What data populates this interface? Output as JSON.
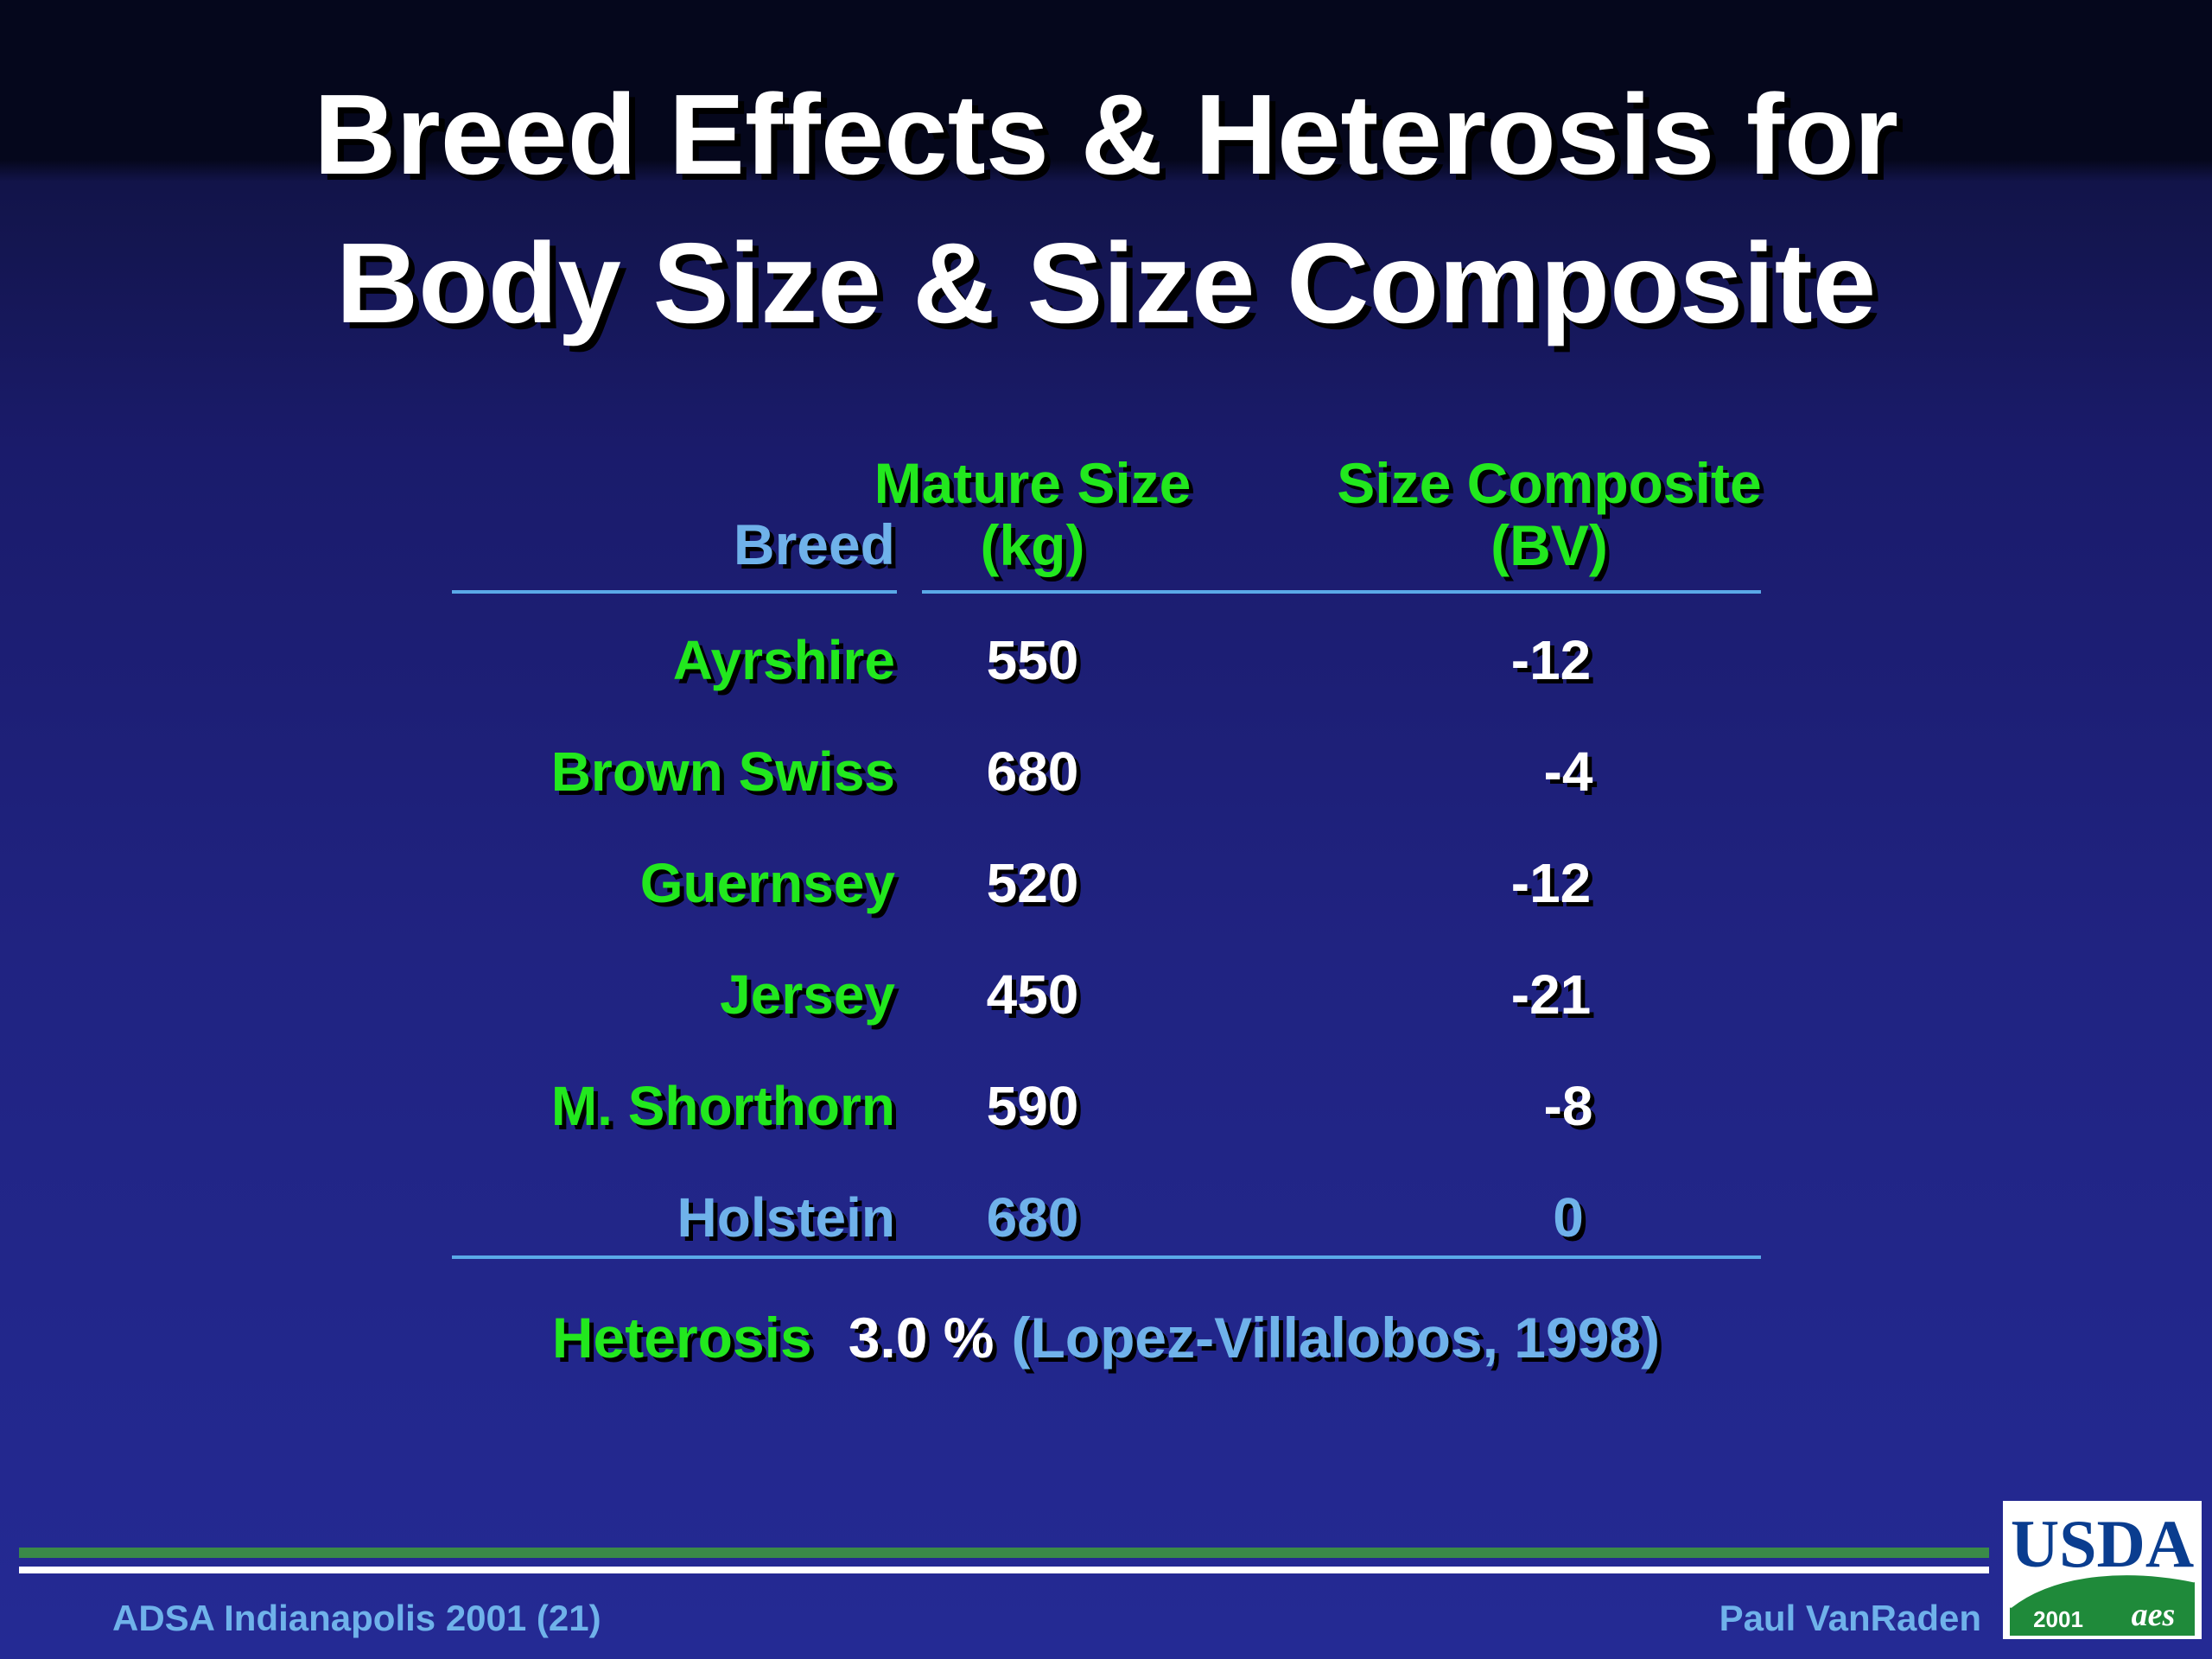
{
  "title": {
    "line1": "Breed Effects & Heterosis for",
    "line2": "Body Size & Size Composite"
  },
  "table": {
    "headers": {
      "breed": "Breed",
      "mature_line1": "Mature Size",
      "mature_line2": "(kg)",
      "size_line1": "Size Composite",
      "size_line2": "(BV)"
    },
    "rows": [
      {
        "breed": "Ayrshire",
        "mature": "550",
        "size": "-12"
      },
      {
        "breed": "Brown Swiss",
        "mature": "680",
        "size": "-4"
      },
      {
        "breed": "Guernsey",
        "mature": "520",
        "size": "-12"
      },
      {
        "breed": "Jersey",
        "mature": "450",
        "size": "-21"
      },
      {
        "breed": "M. Shorthorn",
        "mature": "590",
        "size": "-8"
      },
      {
        "breed": "Holstein",
        "mature": "680",
        "size": "0"
      }
    ]
  },
  "heterosis": {
    "label": "Heterosis",
    "value": "3.0 %",
    "citation": "(Lopez-Villalobos, 1998)"
  },
  "footer": {
    "left": "ADSA Indianapolis 2001 (21)",
    "right": "Paul VanRaden"
  },
  "logo": {
    "name": "USDA",
    "year": "2001",
    "mark": "aes"
  },
  "colors": {
    "green": "#22e81e",
    "blue": "#6fb2ea",
    "white": "#ffffff",
    "logo_blue": "#0a3d8f",
    "logo_green": "#1f8a3a"
  }
}
